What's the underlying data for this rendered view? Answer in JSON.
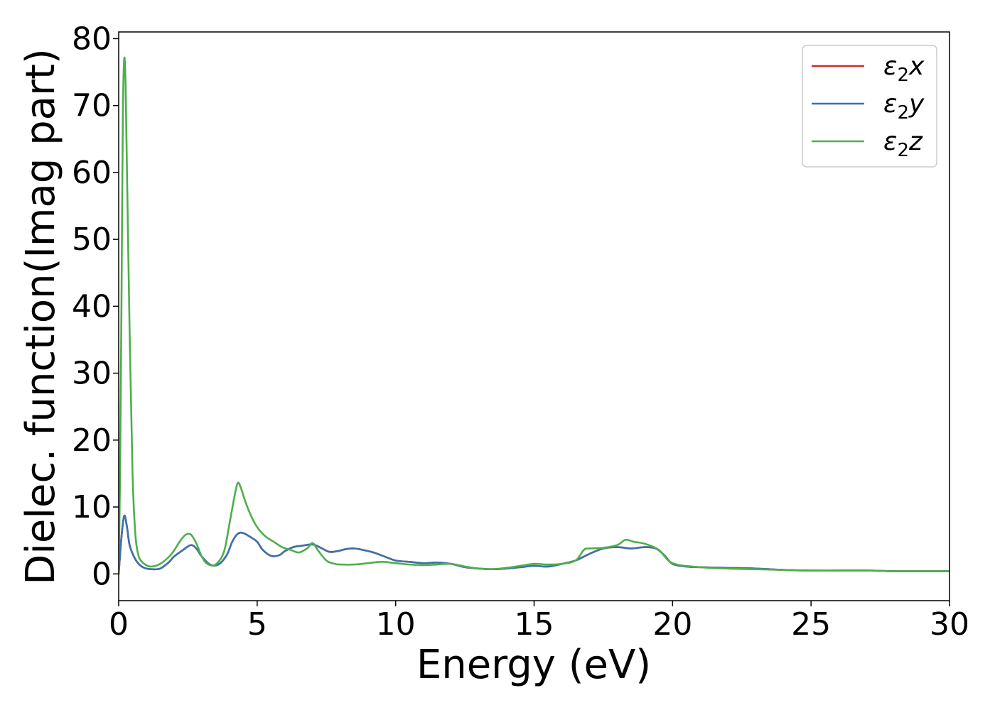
{
  "chart_data": {
    "type": "line",
    "title": "",
    "xlabel": "Energy (eV)",
    "ylabel": "Dielec. function(Imag part)",
    "xlim": [
      0,
      30
    ],
    "ylim": [
      -4,
      81
    ],
    "xticks": [
      0,
      5,
      10,
      15,
      20,
      25,
      30
    ],
    "yticks": [
      0,
      10,
      20,
      30,
      40,
      50,
      60,
      70,
      80
    ],
    "grid": false,
    "legend_position": "top-right",
    "series": [
      {
        "name": "ε₂x",
        "legend_base": "ε",
        "legend_sub": "2",
        "legend_suffix": "x",
        "color": "#d62728",
        "x": [
          0,
          0.1,
          0.2,
          0.3,
          0.4,
          0.6,
          0.8,
          1.0,
          1.2,
          1.5,
          1.8,
          2.0,
          2.3,
          2.6,
          2.8,
          3.0,
          3.3,
          3.6,
          3.9,
          4.1,
          4.3,
          4.5,
          4.8,
          5.0,
          5.2,
          5.5,
          5.8,
          6.0,
          6.3,
          6.6,
          7.0,
          7.3,
          7.6,
          7.9,
          8.2,
          8.5,
          8.8,
          9.2,
          9.6,
          10.0,
          10.5,
          11.0,
          11.5,
          12.0,
          12.5,
          13.0,
          13.5,
          14.0,
          14.5,
          15.0,
          15.5,
          16.0,
          16.5,
          17.0,
          17.5,
          18.0,
          18.5,
          19.0,
          19.4,
          19.7,
          20.0,
          20.5,
          21.0,
          22.0,
          23.0,
          24.0,
          25.0,
          26.0,
          27.0,
          28.0,
          29.0,
          30.0
        ],
        "y": [
          0,
          5.5,
          8.7,
          7.0,
          4.2,
          2.2,
          1.2,
          0.8,
          0.7,
          0.8,
          1.7,
          2.6,
          3.5,
          4.3,
          3.8,
          2.6,
          1.4,
          1.4,
          2.8,
          4.8,
          6.0,
          6.1,
          5.4,
          4.8,
          3.6,
          2.7,
          2.8,
          3.4,
          4.0,
          4.2,
          4.4,
          3.9,
          3.3,
          3.4,
          3.7,
          3.8,
          3.6,
          3.2,
          2.6,
          2.0,
          1.8,
          1.6,
          1.7,
          1.5,
          1.0,
          0.8,
          0.7,
          0.8,
          1.0,
          1.2,
          1.1,
          1.5,
          2.0,
          3.0,
          3.8,
          4.0,
          3.8,
          4.0,
          3.8,
          2.8,
          1.5,
          1.1,
          1.0,
          0.9,
          0.8,
          0.6,
          0.5,
          0.5,
          0.5,
          0.4,
          0.4,
          0.4
        ]
      },
      {
        "name": "ε₂y",
        "legend_base": "ε",
        "legend_sub": "2",
        "legend_suffix": "y",
        "color": "#3a72b0",
        "x": [
          0,
          0.1,
          0.2,
          0.3,
          0.4,
          0.6,
          0.8,
          1.0,
          1.2,
          1.5,
          1.8,
          2.0,
          2.3,
          2.6,
          2.8,
          3.0,
          3.3,
          3.6,
          3.9,
          4.1,
          4.3,
          4.5,
          4.8,
          5.0,
          5.2,
          5.5,
          5.8,
          6.0,
          6.3,
          6.6,
          7.0,
          7.3,
          7.6,
          7.9,
          8.2,
          8.5,
          8.8,
          9.2,
          9.6,
          10.0,
          10.5,
          11.0,
          11.5,
          12.0,
          12.5,
          13.0,
          13.5,
          14.0,
          14.5,
          15.0,
          15.5,
          16.0,
          16.5,
          17.0,
          17.5,
          18.0,
          18.5,
          19.0,
          19.4,
          19.7,
          20.0,
          20.5,
          21.0,
          22.0,
          23.0,
          24.0,
          25.0,
          26.0,
          27.0,
          28.0,
          29.0,
          30.0
        ],
        "y": [
          0,
          5.5,
          8.7,
          7.0,
          4.2,
          2.2,
          1.2,
          0.8,
          0.7,
          0.8,
          1.7,
          2.6,
          3.5,
          4.3,
          3.8,
          2.6,
          1.4,
          1.4,
          2.8,
          4.8,
          6.0,
          6.1,
          5.4,
          4.8,
          3.6,
          2.7,
          2.8,
          3.4,
          4.0,
          4.2,
          4.4,
          3.9,
          3.3,
          3.4,
          3.7,
          3.8,
          3.6,
          3.2,
          2.6,
          2.0,
          1.8,
          1.6,
          1.7,
          1.5,
          1.0,
          0.8,
          0.7,
          0.8,
          1.0,
          1.2,
          1.1,
          1.5,
          2.0,
          3.0,
          3.8,
          4.0,
          3.8,
          4.0,
          3.8,
          2.8,
          1.5,
          1.1,
          1.0,
          0.9,
          0.8,
          0.6,
          0.5,
          0.5,
          0.5,
          0.4,
          0.4,
          0.4
        ]
      },
      {
        "name": "ε₂z",
        "legend_base": "ε",
        "legend_sub": "2",
        "legend_suffix": "z",
        "color": "#4daf4a",
        "x": [
          0,
          0.05,
          0.1,
          0.15,
          0.2,
          0.25,
          0.3,
          0.4,
          0.5,
          0.6,
          0.7,
          0.8,
          1.0,
          1.2,
          1.5,
          1.8,
          2.0,
          2.2,
          2.4,
          2.6,
          2.8,
          3.0,
          3.2,
          3.5,
          3.8,
          4.0,
          4.2,
          4.3,
          4.4,
          4.6,
          4.8,
          5.0,
          5.3,
          5.6,
          5.9,
          6.2,
          6.5,
          6.8,
          7.0,
          7.2,
          7.5,
          7.8,
          8.0,
          8.5,
          9.0,
          9.5,
          10.0,
          10.5,
          11.0,
          11.5,
          12.0,
          12.5,
          13.0,
          13.5,
          14.0,
          14.5,
          15.0,
          15.5,
          16.0,
          16.5,
          16.8,
          17.0,
          17.5,
          18.0,
          18.3,
          18.6,
          19.0,
          19.5,
          20.0,
          21.0,
          22.0,
          23.0,
          24.0,
          25.0,
          26.0,
          27.0,
          28.0,
          29.0,
          30.0
        ],
        "y": [
          0,
          15,
          40,
          68,
          77,
          73,
          60,
          35,
          15,
          6,
          3,
          2,
          1.3,
          1.1,
          1.5,
          2.5,
          3.5,
          4.8,
          5.8,
          5.9,
          4.6,
          2.6,
          1.5,
          1.4,
          3.3,
          7.5,
          12.0,
          13.6,
          13.0,
          10.5,
          8.5,
          7.0,
          5.6,
          4.8,
          4.0,
          3.6,
          3.2,
          3.8,
          4.6,
          3.5,
          2.0,
          1.5,
          1.4,
          1.4,
          1.6,
          1.8,
          1.6,
          1.4,
          1.3,
          1.4,
          1.5,
          1.1,
          0.8,
          0.7,
          0.9,
          1.2,
          1.5,
          1.4,
          1.5,
          2.0,
          3.6,
          3.8,
          3.9,
          4.3,
          5.1,
          4.8,
          4.5,
          3.6,
          1.6,
          1.0,
          0.8,
          0.7,
          0.6,
          0.5,
          0.5,
          0.5,
          0.4,
          0.4,
          0.4
        ]
      }
    ]
  }
}
